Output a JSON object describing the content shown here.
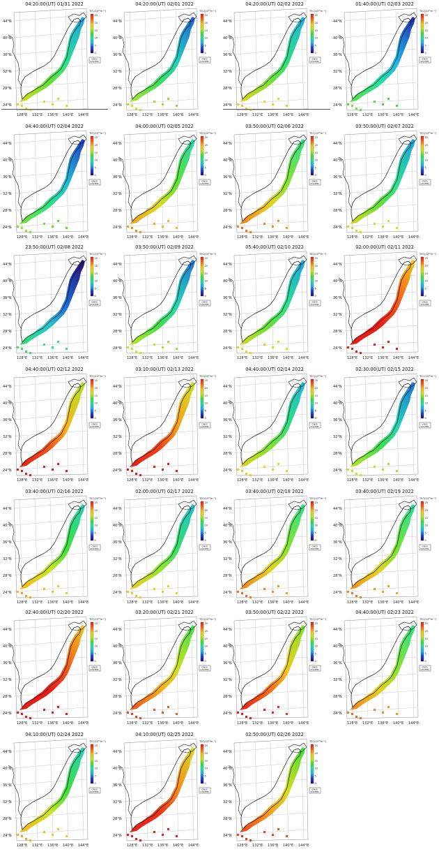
{
  "map_common": {
    "lat_labels": [
      "44°N",
      "40°N",
      "36°N",
      "32°N",
      "28°N",
      "24°N"
    ],
    "lon_labels": [
      "128°E",
      "132°E",
      "136°E",
      "140°E",
      "144°E"
    ],
    "colorbar_title": "TEC(10¹⁶m⁻²)",
    "colorbar_ticks": [
      "25",
      "20",
      "15",
      "10",
      "5",
      "0"
    ],
    "badge_line1": "GNSS",
    "badge_line2": "SYSTEM"
  },
  "colors": {
    "scale": [
      "#2b0a6e",
      "#1f3fd1",
      "#1fb3e6",
      "#22e0a8",
      "#3fe03a",
      "#c9e61f",
      "#f7c51b",
      "#f4631a",
      "#e81e16"
    ]
  },
  "panels": [
    {
      "title": "04:20:00(UT) 01/31 2022",
      "level": 0.45
    },
    {
      "title": "04:20:00(UT) 02/01 2022",
      "level": 0.38
    },
    {
      "title": "04:20:00(UT) 02/02 2022",
      "level": 0.47
    },
    {
      "title": "01:40:00(UT) 02/03 2022",
      "level": 0.3
    },
    {
      "title": "04:40:00(UT) 02/04 2022",
      "level": 0.33
    },
    {
      "title": "04:00:00(UT) 02/05 2022",
      "level": 0.58
    },
    {
      "title": "03:50:00(UT) 02/06 2022",
      "level": 0.62
    },
    {
      "title": "03:50:00(UT) 02/07 2022",
      "level": 0.45
    },
    {
      "title": "23:50:00(UT) 02/08 2022",
      "level": 0.22
    },
    {
      "title": "03:50:00(UT) 02/09 2022",
      "level": 0.4
    },
    {
      "title": "05:40:00(UT) 02/10 2022",
      "level": 0.45
    },
    {
      "title": "02:00:00(UT) 02/11 2022",
      "level": 0.95
    },
    {
      "title": "04:40:00(UT) 02/12 2022",
      "level": 0.82
    },
    {
      "title": "03:10:00(UT) 02/13 2022",
      "level": 0.85
    },
    {
      "title": "04:40:00(UT) 02/14 2022",
      "level": 0.48
    },
    {
      "title": "02:30:00(UT) 02/15 2022",
      "level": 0.4
    },
    {
      "title": "03:40:00(UT) 02/16 2022",
      "level": 0.55
    },
    {
      "title": "02:00:00(UT) 02/17 2022",
      "level": 0.5
    },
    {
      "title": "03:40:00(UT) 02/18 2022",
      "level": 0.62
    },
    {
      "title": "03:40:00(UT) 02/19 2022",
      "level": 0.6
    },
    {
      "title": "02:40:00(UT) 02/20 2022",
      "level": 0.95
    },
    {
      "title": "03:20:00(UT) 02/21 2022",
      "level": 0.7
    },
    {
      "title": "03:50:00(UT) 02/22 2022",
      "level": 0.78
    },
    {
      "title": "04:40:00(UT) 02/23 2022",
      "level": 0.62
    },
    {
      "title": "04:10:00(UT) 02/24 2022",
      "level": 0.55
    },
    {
      "title": "04:10:00(UT) 02/25 2022",
      "level": 0.88
    },
    {
      "title": "02:50:00(UT) 02/26 2022",
      "level": 0.72
    }
  ]
}
